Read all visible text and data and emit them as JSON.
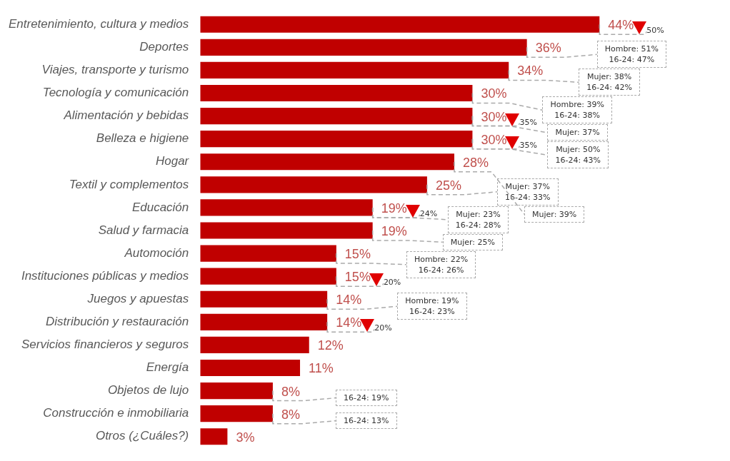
{
  "chart_data": {
    "type": "bar",
    "orientation": "horizontal",
    "color": "#c00000",
    "legend": false,
    "grid": false,
    "categories": [
      "Entretenimiento, cultura y medios",
      "Deportes",
      "Viajes, transporte y turismo",
      "Tecnología y comunicación",
      "Alimentación y bebidas",
      "Belleza e higiene",
      "Hogar",
      "Textil y complementos",
      "Educación",
      "Salud y farmacia",
      "Automoción",
      "Instituciones públicas y medios",
      "Juegos y apuestas",
      "Distribución y restauración",
      "Servicios financieros y seguros",
      "Energía",
      "Objetos de lujo",
      "Construcción e inmobiliaria",
      "Otros (¿Cuáles?)"
    ],
    "values": [
      44,
      36,
      34,
      30,
      30,
      30,
      28,
      25,
      19,
      19,
      15,
      15,
      14,
      14,
      12,
      11,
      8,
      8,
      3
    ],
    "value_labels": [
      "44%",
      "36%",
      "34%",
      "30%",
      "30%",
      "30%",
      "28%",
      "25%",
      "19%",
      "19%",
      "15%",
      "15%",
      "14%",
      "14%",
      "12%",
      "11%",
      "8%",
      "8%",
      "3%"
    ],
    "annotations": [
      {
        "text": "50%",
        "x": 44,
        "y": "Entretenimiento, cultura y medios"
      },
      {
        "text": "35%",
        "x": 30,
        "y": "Alimentación y bebidas"
      },
      {
        "text": "35%",
        "x": 30,
        "y": "Belleza e higiene"
      },
      {
        "text": "24%",
        "x": 19,
        "y": "Educación"
      },
      {
        "text": "20%",
        "x": 15,
        "y": "Instituciones públicas y medios"
      },
      {
        "text": "20%",
        "x": 14,
        "y": "Distribución y restauración"
      },
      {
        "text": "Hombre: 51%\n16-24: 47%",
        "x": 36,
        "y": "Deportes"
      },
      {
        "text": "Mujer: 38%\n16-24: 42%",
        "x": 34,
        "y": "Viajes, transporte y turismo"
      },
      {
        "text": "Hombre: 39%\n16-24: 38%",
        "x": 30,
        "y": "Tecnología y comunicación"
      },
      {
        "text": "Mujer: 37%\n16-24: 33%",
        "x": 25,
        "y": "Textil y complementos"
      },
      {
        "text": "Mujer: 37%",
        "x": 30,
        "y": "Alimentación y bebidas"
      },
      {
        "text": "Mujer: 50%\n16-24: 43%",
        "x": 30,
        "y": "Belleza e higiene"
      },
      {
        "text": "Mujer: 39%",
        "x": 28,
        "y": "Hogar"
      },
      {
        "text": "Mujer: 23%\n16-24: 28%",
        "x": 19,
        "y": "Educación"
      },
      {
        "text": "Mujer: 25%",
        "x": 19,
        "y": "Salud y farmacia"
      },
      {
        "text": "Hombre: 22%\n16-24: 26%",
        "x": 15,
        "y": "Automoción"
      },
      {
        "text": "Hombre: 19%\n16-24: 23%",
        "x": 14,
        "y": "Juegos y apuestas"
      },
      {
        "text": "16-24: 19%",
        "x": 8,
        "y": "Objetos de lujo"
      },
      {
        "text": "16-24: 13%",
        "x": 8,
        "y": "Construcción e inmobiliaria"
      }
    ]
  }
}
